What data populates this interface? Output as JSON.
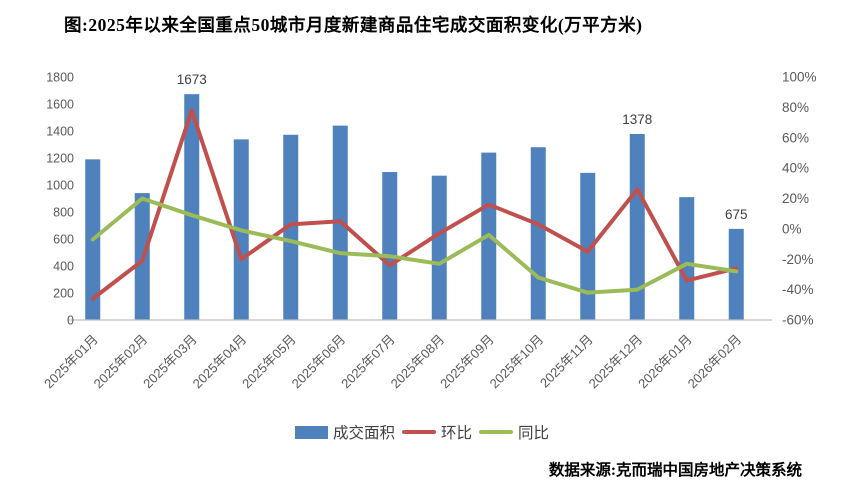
{
  "title": "图:2025年以来全国重点50城市月度新建商品住宅成交面积变化(万平方米)",
  "source": "数据来源:克而瑞中国房地产决策系统",
  "colors": {
    "bar": "#4F81BD",
    "mom_line": "#C0504D",
    "yoy_line": "#9BBB59",
    "axis_text": "#595959",
    "axis_line": "#BFBFBF",
    "data_label": "#3F3F3F"
  },
  "legend": {
    "items": [
      {
        "label": "成交面积",
        "kind": "bar",
        "color": "#4F81BD"
      },
      {
        "label": "环比",
        "kind": "line",
        "color": "#C0504D"
      },
      {
        "label": "同比",
        "kind": "line",
        "color": "#9BBB59"
      }
    ]
  },
  "chart_data": {
    "type": "bar",
    "subtype": "combo-bar-line",
    "title": "图:2025年以来全国重点50城市月度新建商品住宅成交面积变化(万平方米)",
    "categories": [
      "2025年01月",
      "2025年02月",
      "2025年03月",
      "2025年04月",
      "2025年05月",
      "2025年06月",
      "2025年07月",
      "2025年08月",
      "2025年09月",
      "2025年10月",
      "2025年11月",
      "2025年12月",
      "2026年01月",
      "2026年02月"
    ],
    "series": [
      {
        "name": "成交面积",
        "kind": "bar",
        "axis": "left",
        "color": "#4F81BD",
        "values": [
          1190,
          940,
          1673,
          1338,
          1372,
          1440,
          1096,
          1069,
          1240,
          1280,
          1090,
          1378,
          910,
          675
        ]
      },
      {
        "name": "环比",
        "kind": "line",
        "axis": "right",
        "color": "#C0504D",
        "values_percent": [
          -46,
          -21,
          78,
          -20,
          3,
          5,
          -24,
          -3,
          16,
          3,
          -15,
          26,
          -34,
          -26
        ]
      },
      {
        "name": "同比",
        "kind": "line",
        "axis": "right",
        "color": "#9BBB59",
        "values_percent": [
          -7,
          20,
          9,
          -1,
          -8,
          -16,
          -18,
          -23,
          -4,
          -32,
          -42,
          -40,
          -23,
          -28
        ]
      }
    ],
    "bar_value_labels": [
      {
        "index": 2,
        "category": "2025年03月",
        "text": "1673"
      },
      {
        "index": 11,
        "category": "2025年12月",
        "text": "1378"
      },
      {
        "index": 13,
        "category": "2026年02月",
        "text": "675"
      }
    ],
    "left_axis": {
      "min": 0,
      "max": 1800,
      "step": 200,
      "tick_labels": [
        "1800",
        "1600",
        "1400",
        "1200",
        "1000",
        "800",
        "600",
        "400",
        "200",
        "0"
      ]
    },
    "right_axis": {
      "min": -60,
      "max": 100,
      "step": 20,
      "tick_labels": [
        "100%",
        "80%",
        "60%",
        "40%",
        "20%",
        "0%",
        "-20%",
        "-40%",
        "-60%"
      ]
    },
    "grid": false,
    "legend_position": "bottom"
  }
}
